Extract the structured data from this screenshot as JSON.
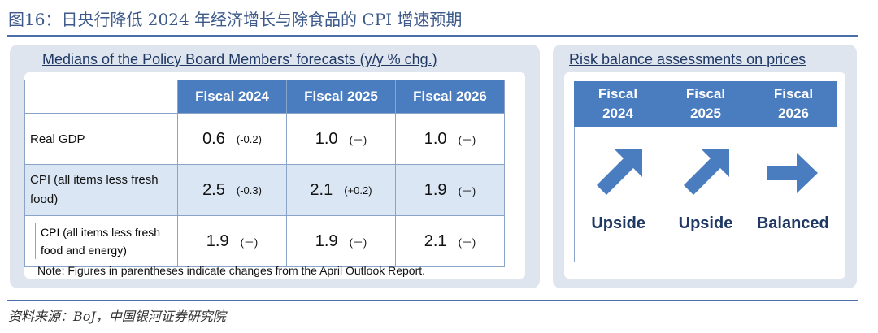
{
  "figure_title": "图16：日央行降低 2024 年经济增长与除食品的 CPI 增速预期",
  "source": "资料来源：BoJ，中国银河证券研究院",
  "left_panel": {
    "title": "Medians of the Policy Board Members' forecasts (y/y % chg.)",
    "columns": [
      "Fiscal 2024",
      "Fiscal 2025",
      "Fiscal 2026"
    ],
    "rows": [
      {
        "label": "Real GDP",
        "cells": [
          {
            "value": "0.6",
            "change": "(-0.2)"
          },
          {
            "value": "1.0",
            "change": "(－)"
          },
          {
            "value": "1.0",
            "change": "(－)"
          }
        ]
      },
      {
        "label": "CPI (all items less fresh food)",
        "cells": [
          {
            "value": "2.5",
            "change": "(-0.3)"
          },
          {
            "value": "2.1",
            "change": "(+0.2)"
          },
          {
            "value": "1.9",
            "change": "(－)"
          }
        ]
      },
      {
        "label": "CPI (all items less fresh food and energy)",
        "cells": [
          {
            "value": "1.9",
            "change": "(－)"
          },
          {
            "value": "1.9",
            "change": "(－)"
          },
          {
            "value": "2.1",
            "change": "(－)"
          }
        ]
      }
    ],
    "note": "Note: Figures in parentheses indicate changes from the April Outlook Report."
  },
  "right_panel": {
    "title": "Risk balance assessments on prices",
    "columns": [
      {
        "line1": "Fiscal",
        "line2": "2024",
        "assessment": "Upside",
        "arrow": "arrow-up-right-icon"
      },
      {
        "line1": "Fiscal",
        "line2": "2025",
        "assessment": "Upside",
        "arrow": "arrow-up-right-icon"
      },
      {
        "line1": "Fiscal",
        "line2": "2026",
        "assessment": "Balanced",
        "arrow": "arrow-right-icon"
      }
    ]
  },
  "colors": {
    "accent": "#4a7cc0",
    "title": "#3d5a8a",
    "panel_bg": "#dfe5ee",
    "highlight_row": "#dbe6f4"
  }
}
